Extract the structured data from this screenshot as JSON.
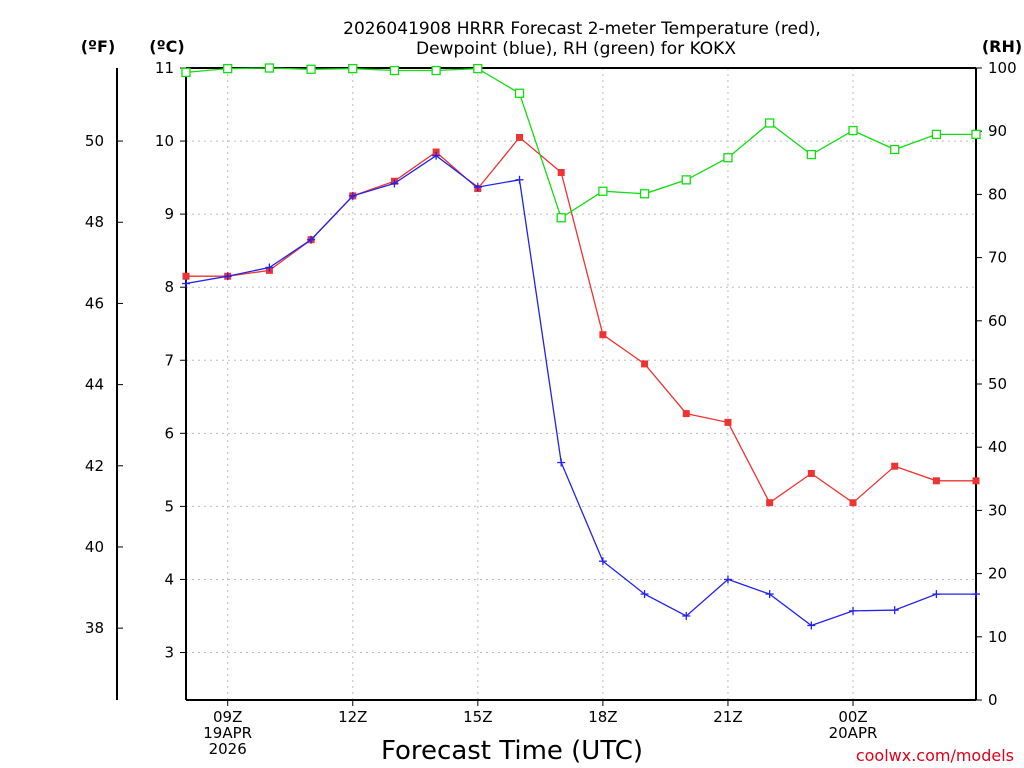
{
  "chart_data": {
    "type": "line",
    "title_line1": "2026041908 HRRR Forecast 2-meter Temperature (red),",
    "title_line2": "Dewpoint (blue), RH (green) for KOKX",
    "xlabel": "Forecast Time (UTC)",
    "credit": "coolwx.com/models",
    "unit_f": "(ºF)",
    "unit_c": "(ºC)",
    "unit_rh": "(RH)",
    "x_hours": [
      8,
      9,
      10,
      11,
      12,
      13,
      14,
      15,
      16,
      17,
      18,
      19,
      20,
      21,
      22,
      23,
      24,
      25,
      26,
      26.95
    ],
    "x_range": [
      8,
      26.95
    ],
    "x_ticks": [
      {
        "hour": 9,
        "lines": [
          "09Z",
          "19APR",
          "2026"
        ]
      },
      {
        "hour": 12,
        "lines": [
          "12Z"
        ]
      },
      {
        "hour": 15,
        "lines": [
          "15Z"
        ]
      },
      {
        "hour": 18,
        "lines": [
          "18Z"
        ]
      },
      {
        "hour": 21,
        "lines": [
          "21Z"
        ]
      },
      {
        "hour": 24,
        "lines": [
          "00Z",
          "20APR"
        ]
      }
    ],
    "ylim_c": [
      2.35,
      11
    ],
    "yticks_c": [
      "3",
      "4",
      "5",
      "6",
      "7",
      "8",
      "9",
      "10",
      "11"
    ],
    "yticks_f": [
      "38",
      "40",
      "42",
      "44",
      "46",
      "48",
      "50"
    ],
    "ylim_rh": [
      0,
      100
    ],
    "yticks_rh": [
      "0",
      "10",
      "20",
      "30",
      "40",
      "50",
      "60",
      "70",
      "80",
      "90",
      "100"
    ],
    "series": [
      {
        "name": "Temperature",
        "units": "°C",
        "color": "#ee3333",
        "marker": "filled-square",
        "axis": "left",
        "values": [
          8.15,
          8.15,
          8.23,
          8.65,
          9.25,
          9.45,
          9.85,
          9.35,
          10.05,
          9.57,
          7.35,
          6.95,
          6.27,
          6.15,
          5.05,
          5.45,
          5.05,
          5.55,
          5.35,
          5.35
        ]
      },
      {
        "name": "Dewpoint",
        "units": "°C",
        "color": "#2222ee",
        "marker": "plus",
        "axis": "left",
        "values": [
          8.05,
          8.15,
          8.27,
          8.65,
          9.25,
          9.42,
          9.8,
          9.37,
          9.47,
          5.6,
          4.25,
          3.8,
          3.5,
          4.0,
          3.8,
          3.37,
          3.57,
          3.58,
          3.8,
          3.8
        ]
      },
      {
        "name": "RH",
        "units": "%",
        "color": "#11dd11",
        "marker": "open-square",
        "axis": "right",
        "values": [
          99.3,
          99.9,
          100,
          99.8,
          99.9,
          99.6,
          99.6,
          99.9,
          96.0,
          76.3,
          80.5,
          80.1,
          82.3,
          85.8,
          91.3,
          86.3,
          90.1,
          87.1,
          89.5,
          89.5
        ]
      }
    ]
  }
}
